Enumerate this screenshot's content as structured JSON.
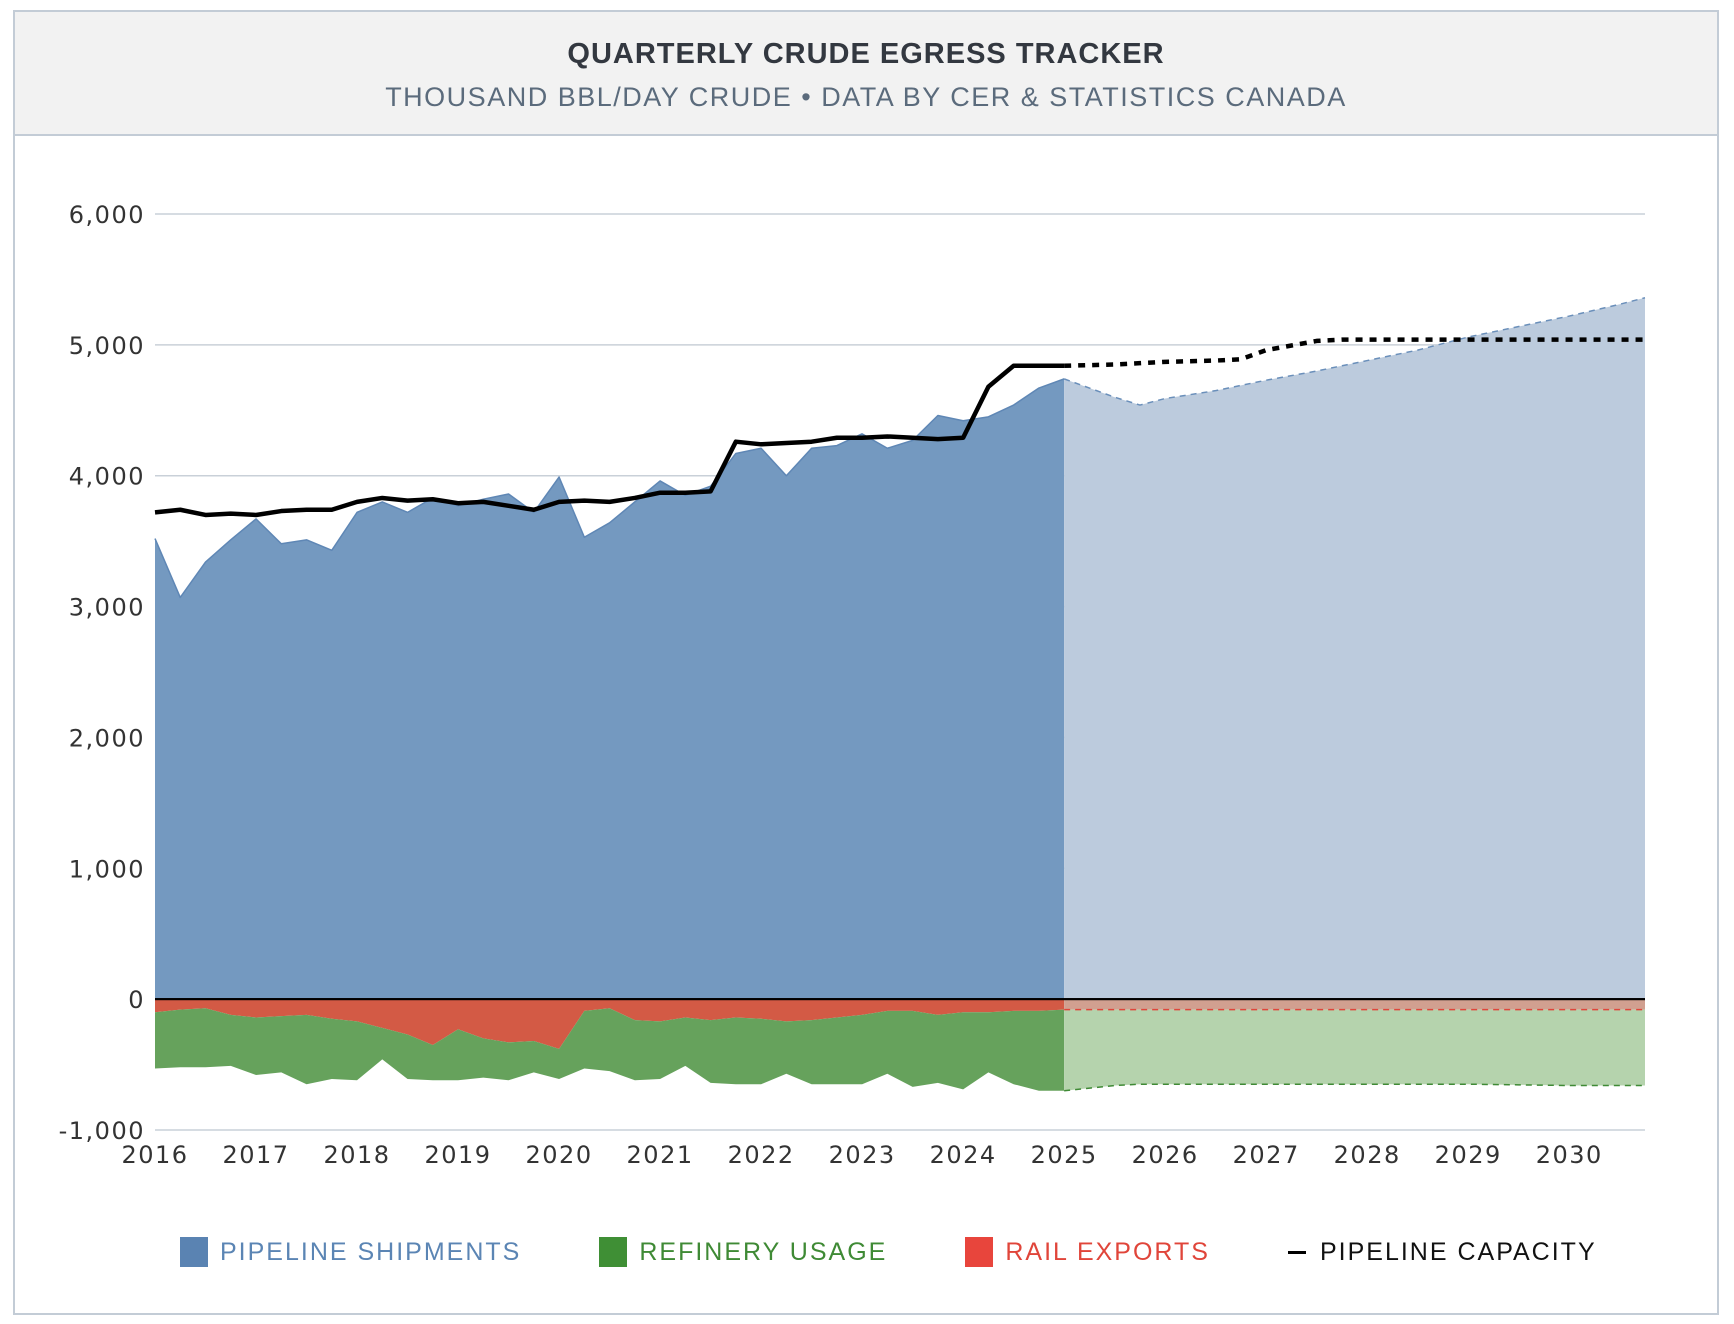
{
  "header": {
    "title": "QUARTERLY CRUDE EGRESS TRACKER",
    "subtitle": "THOUSAND BBL/DAY CRUDE • DATA BY CER & STATISTICS CANADA"
  },
  "colors": {
    "pipeline": "#7499c0",
    "pipeline_forecast": "#bccbdd",
    "pipeline_label": "#5b85b4",
    "pipeline_swatch": "#5a83b2",
    "refinery": "#66a25c",
    "refinery_forecast": "#b5d3ad",
    "refinery_label": "#3f8a35",
    "refinery_swatch": "#3f8f35",
    "rail": "#d35a45",
    "rail_forecast": "#d1a090",
    "rail_label": "#e0453a",
    "rail_swatch": "#e8453c",
    "capacity": "#000000",
    "grid": "#c9d0d8"
  },
  "legend": [
    {
      "key": "pipeline",
      "label": "PIPELINE SHIPMENTS",
      "symbol": "swatch"
    },
    {
      "key": "refinery",
      "label": "REFINERY USAGE",
      "symbol": "swatch"
    },
    {
      "key": "rail",
      "label": "RAIL EXPORTS",
      "symbol": "swatch"
    },
    {
      "key": "capacity",
      "label": "PIPELINE CAPACITY",
      "symbol": "line"
    }
  ],
  "chart_data": {
    "type": "area",
    "title": "QUARTERLY CRUDE EGRESS TRACKER",
    "subtitle": "THOUSAND BBL/DAY CRUDE • DATA BY CER & STATISTICS CANADA",
    "xlabel": "",
    "ylabel": "",
    "ylim": [
      -1000,
      6000
    ],
    "xlim": [
      2016,
      2030.75
    ],
    "yticks": [
      6000,
      5000,
      4000,
      3000,
      2000,
      1000,
      0,
      -1000
    ],
    "ytick_labels": [
      "6,000",
      "5,000",
      "4,000",
      "3,000",
      "2,000",
      "1,000",
      "0",
      "-1,000"
    ],
    "xticks": [
      2016,
      2017,
      2018,
      2019,
      2020,
      2021,
      2022,
      2023,
      2024,
      2025,
      2026,
      2027,
      2028,
      2029,
      2030
    ],
    "grid": true,
    "legend_position": "bottom",
    "forecast_start": 2025,
    "x": [
      2016,
      2016.25,
      2016.5,
      2016.75,
      2017,
      2017.25,
      2017.5,
      2017.75,
      2018,
      2018.25,
      2018.5,
      2018.75,
      2019,
      2019.25,
      2019.5,
      2019.75,
      2020,
      2020.25,
      2020.5,
      2020.75,
      2021,
      2021.25,
      2021.5,
      2021.75,
      2022,
      2022.25,
      2022.5,
      2022.75,
      2023,
      2023.25,
      2023.5,
      2023.75,
      2024,
      2024.25,
      2024.5,
      2024.75,
      2025
    ],
    "series": [
      {
        "name": "PIPELINE SHIPMENTS",
        "values": [
          3520,
          3070,
          3340,
          3510,
          3670,
          3480,
          3510,
          3430,
          3720,
          3800,
          3720,
          3830,
          3770,
          3820,
          3860,
          3720,
          3990,
          3530,
          3640,
          3800,
          3960,
          3850,
          3920,
          4170,
          4210,
          4000,
          4210,
          4230,
          4320,
          4210,
          4270,
          4460,
          4420,
          4450,
          4540,
          4670,
          4740
        ]
      },
      {
        "name": "RAIL EXPORTS",
        "values": [
          -100,
          -80,
          -70,
          -120,
          -140,
          -130,
          -120,
          -150,
          -170,
          -220,
          -270,
          -350,
          -230,
          -300,
          -330,
          -320,
          -380,
          -90,
          -70,
          -160,
          -170,
          -140,
          -160,
          -140,
          -150,
          -170,
          -160,
          -140,
          -120,
          -90,
          -90,
          -120,
          -100,
          -100,
          -90,
          -90,
          -80
        ]
      },
      {
        "name": "REFINERY USAGE",
        "values": [
          -430,
          -440,
          -450,
          -390,
          -440,
          -430,
          -530,
          -460,
          -450,
          -240,
          -340,
          -270,
          -390,
          -300,
          -290,
          -240,
          -230,
          -440,
          -480,
          -460,
          -440,
          -370,
          -480,
          -510,
          -500,
          -400,
          -490,
          -510,
          -530,
          -480,
          -580,
          -520,
          -590,
          -460,
          -560,
          -610,
          -620
        ]
      },
      {
        "name": "PIPELINE CAPACITY",
        "values": [
          3720,
          3740,
          3700,
          3710,
          3700,
          3730,
          3740,
          3740,
          3800,
          3830,
          3810,
          3820,
          3790,
          3800,
          3770,
          3740,
          3800,
          3810,
          3800,
          3830,
          3870,
          3870,
          3880,
          4260,
          4240,
          4250,
          4260,
          4290,
          4290,
          4300,
          4290,
          4280,
          4290,
          4680,
          4840,
          4840,
          4840
        ]
      }
    ],
    "forecast": {
      "x": [
        2025,
        2025.5,
        2025.75,
        2026,
        2026.5,
        2026.75,
        2027,
        2027.5,
        2027.75,
        2028,
        2028.5,
        2029,
        2029.5,
        2030,
        2030.5,
        2030.75
      ],
      "series": [
        {
          "name": "PIPELINE SHIPMENTS",
          "values": [
            4740,
            4600,
            4540,
            4590,
            4650,
            4690,
            4730,
            4800,
            4840,
            4880,
            4960,
            5060,
            5140,
            5220,
            5310,
            5360
          ]
        },
        {
          "name": "RAIL EXPORTS",
          "values": [
            -80,
            -80,
            -80,
            -80,
            -80,
            -80,
            -80,
            -80,
            -80,
            -80,
            -80,
            -80,
            -80,
            -80,
            -80,
            -80
          ]
        },
        {
          "name": "REFINERY USAGE",
          "values": [
            -620,
            -580,
            -570,
            -570,
            -570,
            -570,
            -570,
            -570,
            -570,
            -570,
            -570,
            -570,
            -575,
            -580,
            -580,
            -580
          ]
        },
        {
          "name": "PIPELINE CAPACITY",
          "values": [
            4840,
            4850,
            4860,
            4870,
            4880,
            4890,
            4960,
            5030,
            5040,
            5040,
            5040,
            5040,
            5040,
            5040,
            5040,
            5040
          ]
        }
      ]
    }
  }
}
